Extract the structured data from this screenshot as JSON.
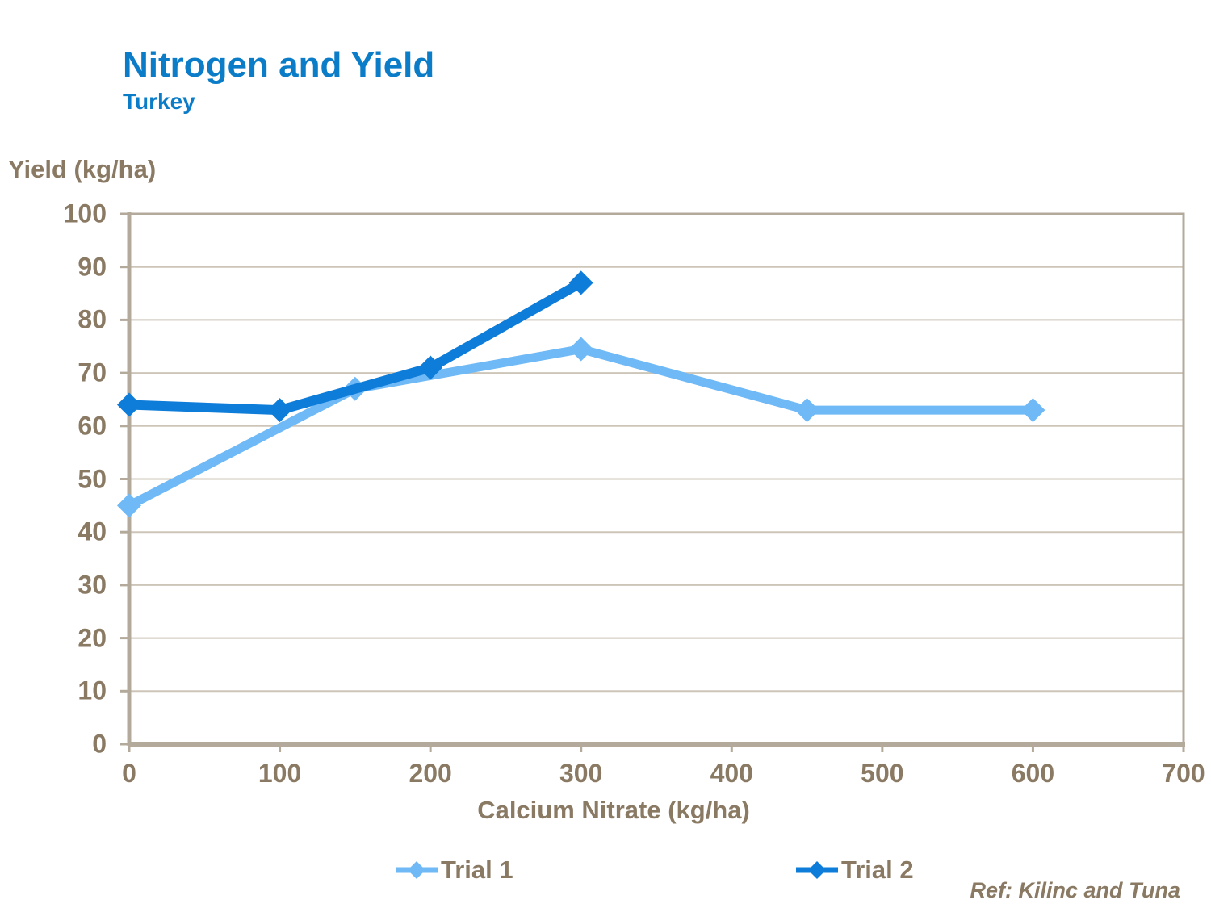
{
  "header": {
    "title": "Nitrogen and Yield",
    "subtitle": "Turkey"
  },
  "footer": {
    "reference": "Ref: Kilinc and Tuna"
  },
  "colors": {
    "title_blue": "#0b7cc7",
    "axis_text": "#8a7a64",
    "gridline": "#cdc5b8",
    "plot_border": "#b3aa9c",
    "trial1": "#6eb9f6",
    "trial2": "#0e7cd9",
    "background": "#ffffff"
  },
  "chart_data": {
    "type": "line",
    "title": "Nitrogen and Yield",
    "subtitle": "Turkey",
    "xlabel": "Calcium Nitrate (kg/ha)",
    "ylabel": "Yield (kg/ha)",
    "xlim": [
      0,
      700
    ],
    "ylim": [
      0,
      100
    ],
    "xticks": [
      0,
      100,
      200,
      300,
      400,
      500,
      600,
      700
    ],
    "yticks": [
      0,
      10,
      20,
      30,
      40,
      50,
      60,
      70,
      80,
      90,
      100
    ],
    "grid": "horizontal",
    "legend_position": "bottom",
    "marker": "diamond",
    "series": [
      {
        "name": "Trial 1",
        "color": "#6eb9f6",
        "x": [
          0,
          150,
          300,
          450,
          600
        ],
        "y": [
          45,
          67,
          74.5,
          63,
          63
        ]
      },
      {
        "name": "Trial 2",
        "color": "#0e7cd9",
        "x": [
          0,
          100,
          200,
          300
        ],
        "y": [
          64,
          63,
          71,
          87
        ]
      }
    ],
    "annotation": "Ref: Kilinc and Tuna"
  }
}
